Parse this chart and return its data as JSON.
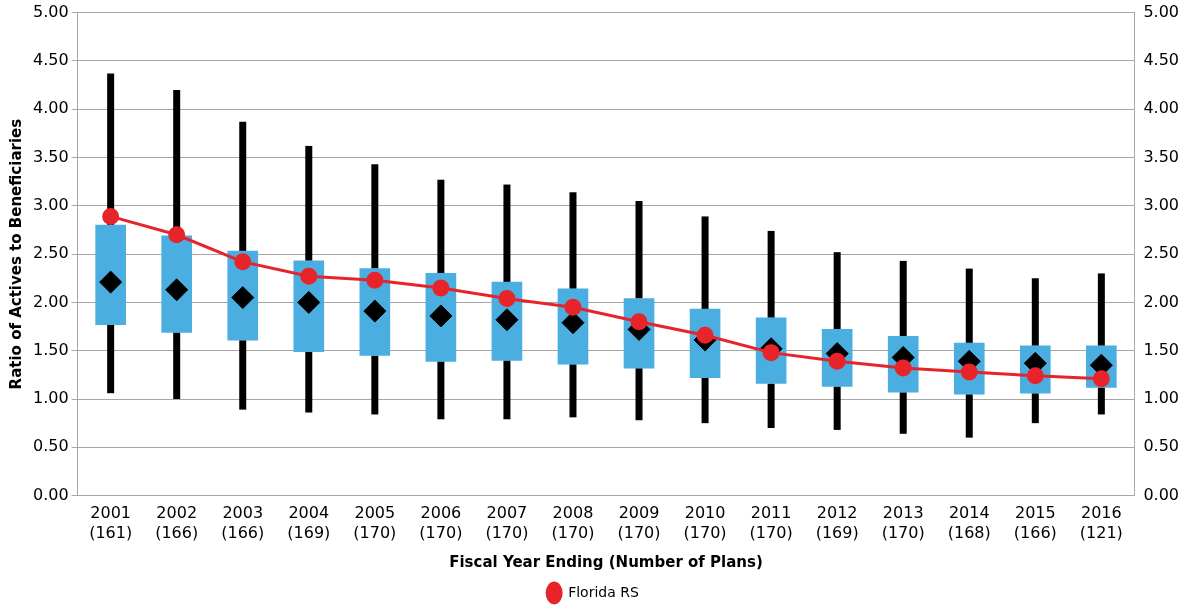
{
  "chart_data": {
    "type": "box",
    "xlabel": "Fiscal Year Ending (Number of Plans)",
    "ylabel": "Ratio of Actives to Beneficiaries",
    "categories": [
      "2001 (161)",
      "2002 (166)",
      "2003 (166)",
      "2004 (169)",
      "2005 (170)",
      "2006 (170)",
      "2007 (170)",
      "2008 (170)",
      "2009 (170)",
      "2010 (170)",
      "2011 (170)",
      "2012 (169)",
      "2013 (170)",
      "2014 (168)",
      "2015 (166)",
      "2016 (121)"
    ],
    "ylim": [
      0,
      5
    ],
    "yticks": [
      {
        "value": 0,
        "label": "0.00"
      },
      {
        "value": 0.5,
        "label": "0.50"
      },
      {
        "value": 1,
        "label": "1.00"
      },
      {
        "value": 1.5,
        "label": "1.50"
      },
      {
        "value": 2,
        "label": "2.00"
      },
      {
        "value": 2.5,
        "label": "2.50"
      },
      {
        "value": 3,
        "label": "3.00"
      },
      {
        "value": 3.5,
        "label": "3.50"
      },
      {
        "value": 4,
        "label": "4.00"
      },
      {
        "value": 4.5,
        "label": "4.50"
      },
      {
        "value": 5,
        "label": "5.00"
      }
    ],
    "y2lim": [
      0,
      5
    ],
    "y2ticks": [
      {
        "value": 0,
        "label": "0.00"
      },
      {
        "value": 0.5,
        "label": "0.50"
      },
      {
        "value": 1,
        "label": "1.00"
      },
      {
        "value": 1.5,
        "label": "1.50"
      },
      {
        "value": 2,
        "label": "2.00"
      },
      {
        "value": 2.5,
        "label": "2.50"
      },
      {
        "value": 3,
        "label": "3.00"
      },
      {
        "value": 3.5,
        "label": "3.50"
      },
      {
        "value": 4,
        "label": "4.00"
      },
      {
        "value": 4.5,
        "label": "4.50"
      },
      {
        "value": 5,
        "label": "5.00"
      }
    ],
    "grid": "y",
    "legend": "bottom",
    "marker": "circle",
    "series": [
      {
        "color": "#4baee0",
        "boxes": [
          {
            "low": 1.06,
            "q1": 1.77,
            "median": 2.21,
            "q3": 2.8,
            "high": 4.37
          },
          {
            "low": 1.0,
            "q1": 1.69,
            "median": 2.13,
            "q3": 2.69,
            "high": 4.2
          },
          {
            "low": 0.89,
            "q1": 1.61,
            "median": 2.05,
            "q3": 2.53,
            "high": 3.87
          },
          {
            "low": 0.86,
            "q1": 1.49,
            "median": 2.0,
            "q3": 2.43,
            "high": 3.62
          },
          {
            "low": 0.84,
            "q1": 1.45,
            "median": 1.91,
            "q3": 2.35,
            "high": 3.43
          },
          {
            "low": 0.79,
            "q1": 1.39,
            "median": 1.86,
            "q3": 2.3,
            "high": 3.27
          },
          {
            "low": 0.79,
            "q1": 1.4,
            "median": 1.82,
            "q3": 2.21,
            "high": 3.22
          },
          {
            "low": 0.81,
            "q1": 1.36,
            "median": 1.79,
            "q3": 2.14,
            "high": 3.14
          },
          {
            "low": 0.78,
            "q1": 1.32,
            "median": 1.72,
            "q3": 2.04,
            "high": 3.05
          },
          {
            "low": 0.75,
            "q1": 1.22,
            "median": 1.61,
            "q3": 1.93,
            "high": 2.89
          },
          {
            "low": 0.7,
            "q1": 1.16,
            "median": 1.52,
            "q3": 1.84,
            "high": 2.74
          },
          {
            "low": 0.68,
            "q1": 1.13,
            "median": 1.47,
            "q3": 1.72,
            "high": 2.52
          },
          {
            "low": 0.64,
            "q1": 1.07,
            "median": 1.43,
            "q3": 1.65,
            "high": 2.43
          },
          {
            "low": 0.6,
            "q1": 1.05,
            "median": 1.39,
            "q3": 1.58,
            "high": 2.35
          },
          {
            "low": 0.75,
            "q1": 1.06,
            "median": 1.37,
            "q3": 1.55,
            "high": 2.25
          },
          {
            "low": 0.84,
            "q1": 1.12,
            "median": 1.35,
            "q3": 1.55,
            "high": 2.3
          }
        ]
      },
      {
        "type": "line",
        "name": "Florida RS",
        "color": "#e8242b",
        "values": [
          2.89,
          2.7,
          2.42,
          2.27,
          2.23,
          2.15,
          2.04,
          1.95,
          1.8,
          1.66,
          1.48,
          1.39,
          1.32,
          1.28,
          1.24,
          1.21
        ]
      }
    ]
  }
}
